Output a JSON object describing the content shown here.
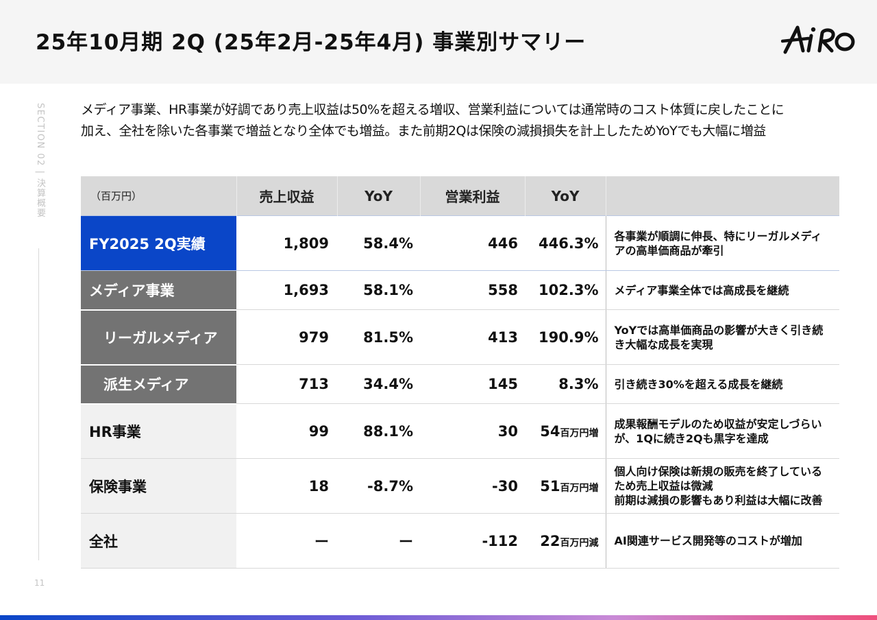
{
  "header": {
    "title": "25年10月期 2Q (25年2月-25年4月) 事業別サマリー",
    "logo_text": "AiRo"
  },
  "sidebar": {
    "section_label": "SECTION 02 | 決算概要",
    "page_number": "11"
  },
  "summary": {
    "line1": "メディア事業、HR事業が好調であり売上収益は50%を超える増収、営業利益については通常時のコスト体質に戻したことに",
    "line2": "加え、全社を除いた各事業で増益となり全体でも増益。また前期2Qは保険の減損損失を計上したためYoYでも大幅に増益"
  },
  "table": {
    "headers": {
      "unit": "（百万円）",
      "revenue": "売上収益",
      "revenue_yoy": "YoY",
      "operating_profit": "営業利益",
      "op_yoy": "YoY",
      "comment": ""
    },
    "rows": [
      {
        "label": "FY2025 2Q実績",
        "revenue": "1,809",
        "revenue_yoy": "58.4%",
        "operating_profit": "446",
        "op_yoy": "446.3%",
        "op_yoy_unit": "",
        "comment": [
          "各事業が順調に伸長、特にリーガルメディ",
          "アの高単価商品が牽引"
        ]
      },
      {
        "label": "メディア事業",
        "revenue": "1,693",
        "revenue_yoy": "58.1%",
        "operating_profit": "558",
        "op_yoy": "102.3%",
        "op_yoy_unit": "",
        "comment": [
          "メディア事業全体では高成長を継続"
        ]
      },
      {
        "label": "リーガルメディア",
        "revenue": "979",
        "revenue_yoy": "81.5%",
        "operating_profit": "413",
        "op_yoy": "190.9%",
        "op_yoy_unit": "",
        "comment": [
          "YoYでは高単価商品の影響が大きく引き続",
          "き大幅な成長を実現"
        ]
      },
      {
        "label": "派生メディア",
        "revenue": "713",
        "revenue_yoy": "34.4%",
        "operating_profit": "145",
        "op_yoy": "8.3%",
        "op_yoy_unit": "",
        "comment": [
          "引き続き30%を超える成長を継続"
        ]
      },
      {
        "label": "HR事業",
        "revenue": "99",
        "revenue_yoy": "88.1%",
        "operating_profit": "30",
        "op_yoy": "54",
        "op_yoy_unit": "百万円増",
        "comment": [
          "成果報酬モデルのため収益が安定しづらい",
          "が、1Qに続き2Qも黒字を達成"
        ]
      },
      {
        "label": "保険事業",
        "revenue": "18",
        "revenue_yoy": "-8.7%",
        "operating_profit": "-30",
        "op_yoy": "51",
        "op_yoy_unit": "百万円増",
        "comment": [
          "個人向け保険は新規の販売を終了している",
          "ため売上収益は微減",
          "前期は減損の影響もあり利益は大幅に改善"
        ]
      },
      {
        "label": "全社",
        "revenue": "ー",
        "revenue_yoy": "ー",
        "operating_profit": "-112",
        "op_yoy": "22",
        "op_yoy_unit": "百万円減",
        "comment": [
          "AI関連サービス開発等のコストが増加"
        ]
      }
    ]
  },
  "colors": {
    "highlight_blue": "#0a46c8",
    "segment_grey": "#737373",
    "header_grey": "#d9d9d9",
    "label_light": "#f1f1f1"
  }
}
